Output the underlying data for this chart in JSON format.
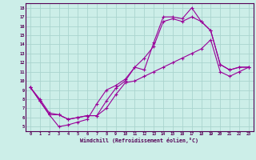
{
  "xlabel": "Windchill (Refroidissement éolien,°C)",
  "bg_color": "#cceee8",
  "grid_color": "#aad4ce",
  "line_color": "#990099",
  "xlim": [
    -0.5,
    23.5
  ],
  "ylim": [
    4.5,
    18.5
  ],
  "yticks": [
    5,
    6,
    7,
    8,
    9,
    10,
    11,
    12,
    13,
    14,
    15,
    16,
    17,
    18
  ],
  "xticks": [
    0,
    1,
    2,
    3,
    4,
    5,
    6,
    7,
    8,
    9,
    10,
    11,
    12,
    13,
    14,
    15,
    16,
    17,
    18,
    19,
    20,
    21,
    22,
    23
  ],
  "line1_x": [
    0,
    1,
    2,
    3,
    4,
    5,
    6,
    7,
    8,
    9,
    10,
    11,
    12,
    13,
    14,
    15,
    16,
    17,
    18,
    19,
    20,
    21,
    22,
    23
  ],
  "line1_y": [
    9.3,
    7.8,
    6.3,
    5.0,
    5.2,
    5.5,
    5.8,
    7.5,
    9.0,
    9.5,
    10.2,
    11.5,
    11.2,
    14.2,
    17.0,
    17.0,
    16.8,
    18.0,
    16.5,
    15.5,
    11.8,
    11.2,
    11.5,
    11.5
  ],
  "line2_x": [
    0,
    1,
    2,
    3,
    4,
    5,
    6,
    7,
    8,
    9,
    10,
    11,
    12,
    13,
    14,
    15,
    16,
    17,
    18,
    19,
    20,
    21,
    22,
    23
  ],
  "line2_y": [
    9.3,
    7.8,
    6.3,
    6.3,
    5.8,
    6.0,
    6.2,
    6.2,
    7.8,
    9.2,
    10.0,
    11.5,
    12.5,
    13.8,
    16.5,
    16.8,
    16.5,
    17.0,
    16.5,
    15.5,
    11.8,
    11.2,
    11.5,
    11.5
  ],
  "line3_x": [
    0,
    1,
    2,
    3,
    4,
    5,
    6,
    7,
    8,
    9,
    10,
    11,
    12,
    13,
    14,
    15,
    16,
    17,
    18,
    19,
    20,
    21,
    22,
    23
  ],
  "line3_y": [
    9.3,
    8.0,
    6.5,
    6.3,
    5.8,
    6.0,
    6.2,
    6.2,
    7.0,
    8.5,
    9.8,
    10.0,
    10.5,
    11.0,
    11.5,
    12.0,
    12.5,
    13.0,
    13.5,
    14.5,
    11.0,
    10.5,
    11.0,
    11.5
  ]
}
